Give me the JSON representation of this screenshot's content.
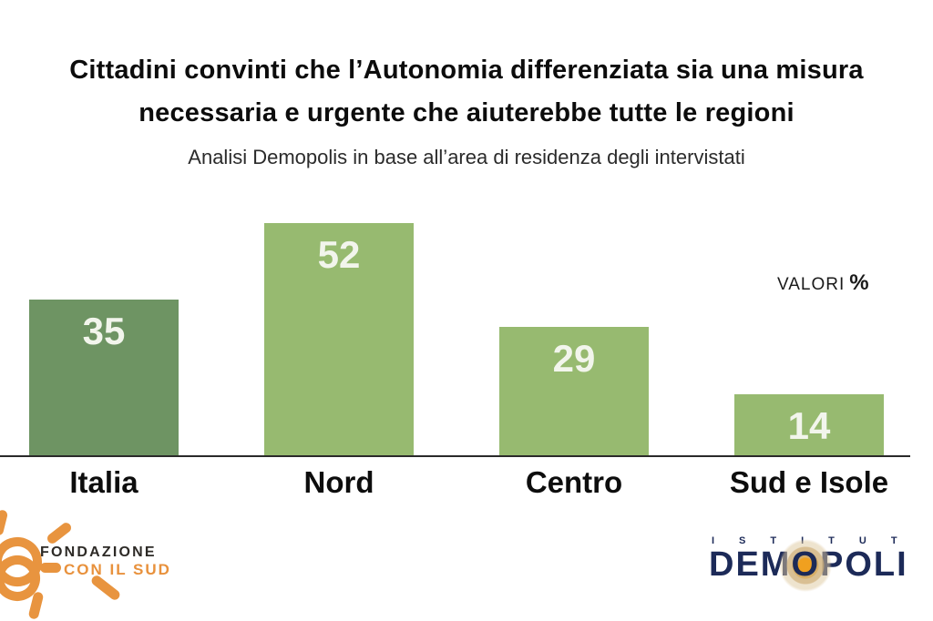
{
  "title": {
    "line1": "Cittadini convinti che l’Autonomia differenziata sia una misura",
    "line2": "necessaria e urgente che aiuterebbe tutte le regioni"
  },
  "subtitle": "Analisi Demopolis in base all’area di residenza degli intervistati",
  "value_note": {
    "label": "VALORI",
    "unit": "%"
  },
  "chart_data": {
    "type": "bar",
    "categories": [
      "Italia",
      "Nord",
      "Centro",
      "Sud e Isole"
    ],
    "values": [
      35,
      52,
      29,
      14
    ],
    "unit": "percent",
    "title": "Cittadini convinti che l’Autonomia differenziata sia una misura necessaria e urgente che aiuterebbe tutte le regioni",
    "subtitle": "Analisi Demopolis in base all’area di residenza degli intervistati",
    "annotation": "VALORI %",
    "xlabel": "",
    "ylabel": "",
    "ylim": [
      0,
      60
    ],
    "grid": false,
    "legend": "none",
    "bar_colors": [
      "#6e9463",
      "#97ba70",
      "#97ba70",
      "#97ba70"
    ],
    "value_label_color": "#f2f5ec",
    "axis_line_color": "#2a2a2a"
  },
  "footer": {
    "fondazione_logo": {
      "line1": "FONDAZIONE",
      "line2": "CON IL SUD",
      "accent_color": "#e8943f",
      "text_color": "#2d2a26"
    },
    "demopolis_logo": {
      "top_text": "ISTITUT",
      "main_prefix": "DEM",
      "main_o": "O",
      "main_suffix": "POLI",
      "color": "#1c2a58",
      "halo_color": "#f0a01f"
    }
  }
}
